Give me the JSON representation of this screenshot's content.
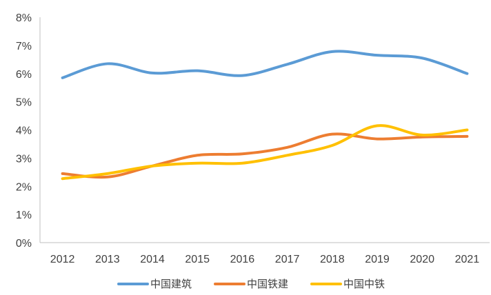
{
  "chart_data": {
    "type": "line",
    "x": [
      "2012",
      "2013",
      "2014",
      "2015",
      "2016",
      "2017",
      "2018",
      "2019",
      "2020",
      "2021"
    ],
    "yticks": [
      "0%",
      "1%",
      "2%",
      "3%",
      "4%",
      "5%",
      "6%",
      "7%",
      "8%"
    ],
    "ylim": [
      0,
      8
    ],
    "grid": false,
    "legend_position": "bottom",
    "series": [
      {
        "name": "中国建筑",
        "color": "#5B9BD5",
        "values": [
          5.85,
          6.35,
          6.02,
          6.1,
          5.93,
          6.33,
          6.78,
          6.65,
          6.55,
          6.0
        ]
      },
      {
        "name": "中国铁建",
        "color": "#ED7D31",
        "values": [
          2.45,
          2.33,
          2.72,
          3.1,
          3.15,
          3.38,
          3.85,
          3.68,
          3.75,
          3.77
        ]
      },
      {
        "name": "中国中铁",
        "color": "#FFC000",
        "values": [
          2.27,
          2.45,
          2.72,
          2.82,
          2.82,
          3.1,
          3.45,
          4.15,
          3.82,
          4.0
        ]
      }
    ]
  }
}
